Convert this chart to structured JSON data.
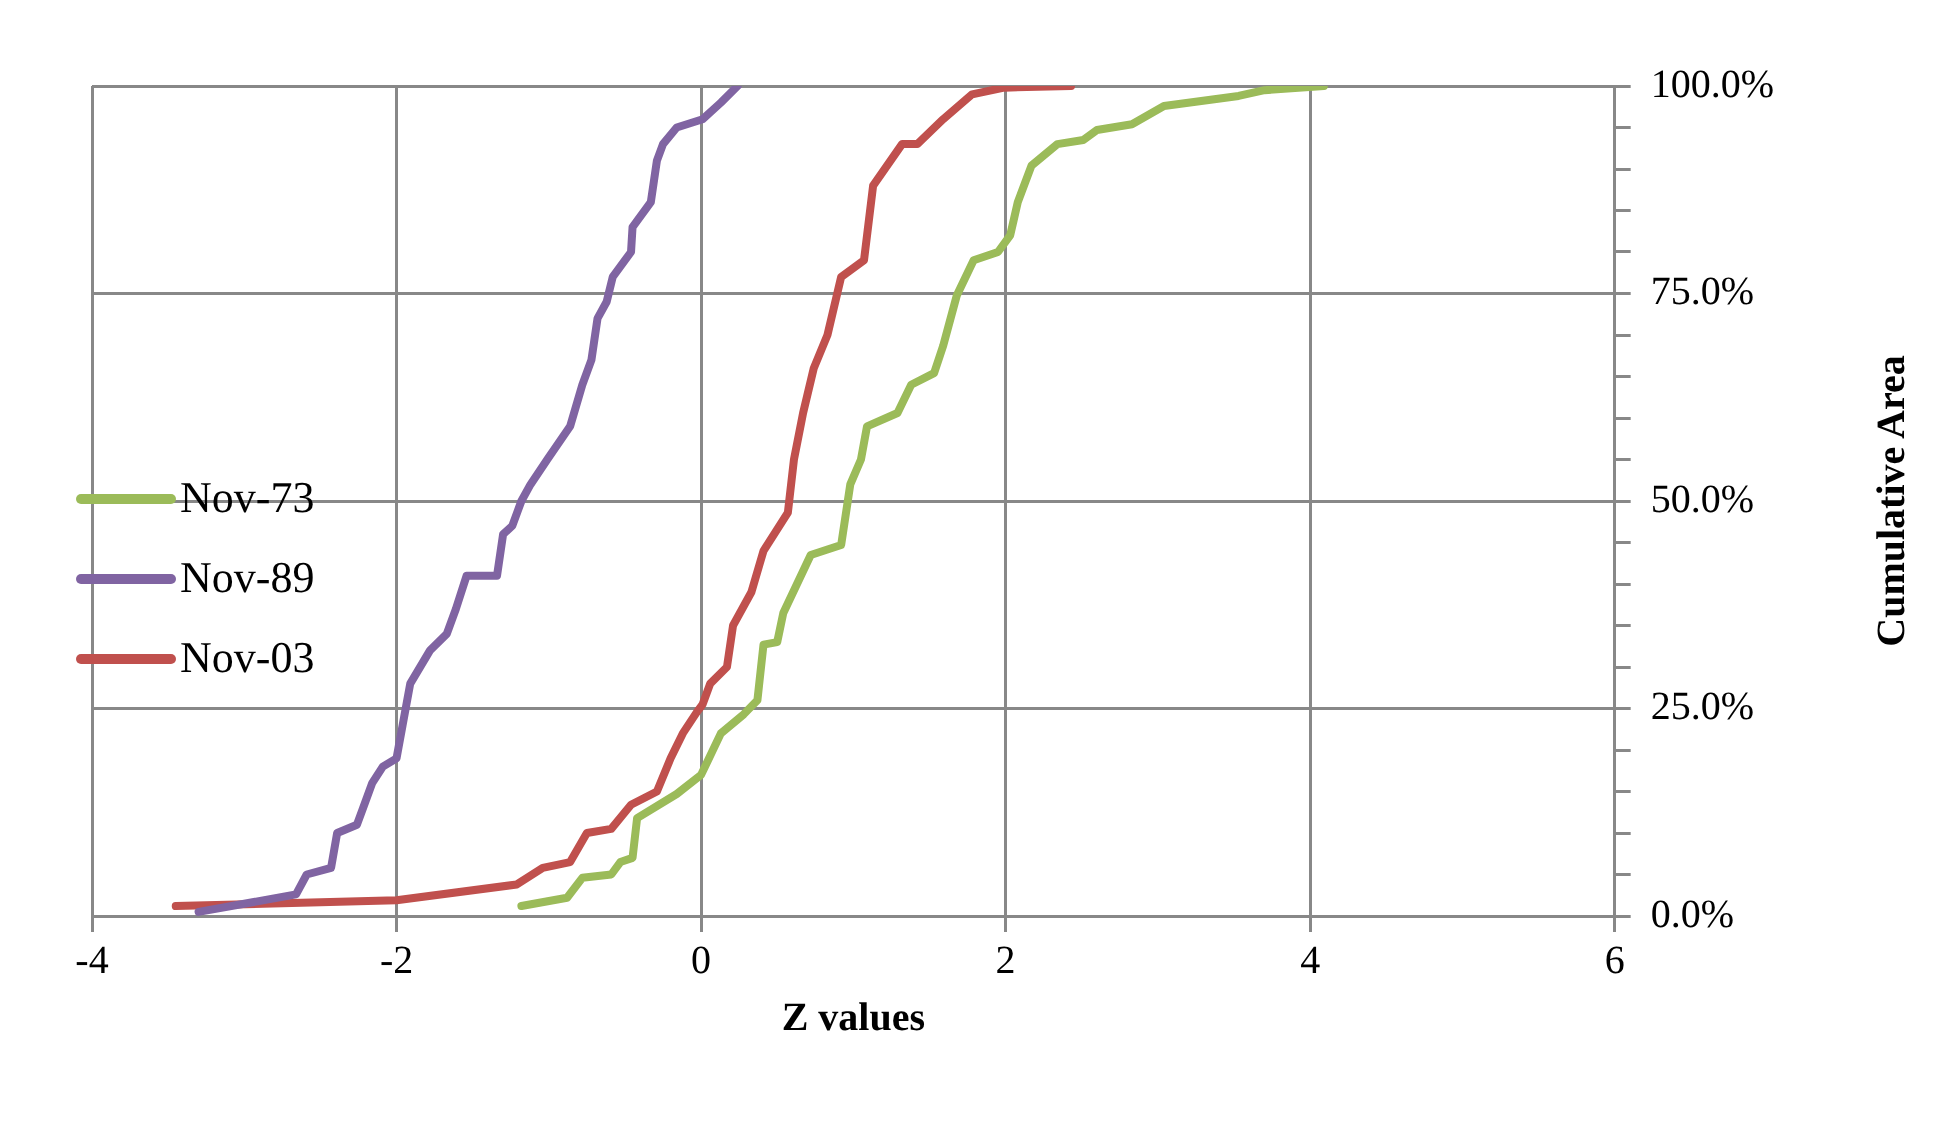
{
  "chart_data": {
    "type": "line",
    "xlabel": "Z values",
    "ylabel": "Cumulative Area",
    "xlim": [
      -4,
      6
    ],
    "xticks": [
      -4,
      -2,
      0,
      2,
      4,
      6
    ],
    "ylim": [
      0,
      100
    ],
    "yticks": [
      {
        "value": 0,
        "label": "0.0%"
      },
      {
        "value": 5,
        "label": null
      },
      {
        "value": 10,
        "label": null
      },
      {
        "value": 15,
        "label": null
      },
      {
        "value": 20,
        "label": null
      },
      {
        "value": 25,
        "label": "25.0%"
      },
      {
        "value": 30,
        "label": null
      },
      {
        "value": 35,
        "label": null
      },
      {
        "value": 40,
        "label": null
      },
      {
        "value": 45,
        "label": null
      },
      {
        "value": 50,
        "label": "50.0%"
      },
      {
        "value": 55,
        "label": null
      },
      {
        "value": 60,
        "label": null
      },
      {
        "value": 65,
        "label": null
      },
      {
        "value": 70,
        "label": null
      },
      {
        "value": 75,
        "label": "75.0%"
      },
      {
        "value": 80,
        "label": null
      },
      {
        "value": 85,
        "label": null
      },
      {
        "value": 90,
        "label": null
      },
      {
        "value": 95,
        "label": null
      },
      {
        "value": 100,
        "label": "100.0%"
      }
    ],
    "grid": true,
    "legend": "left",
    "marker": "none",
    "line_style": "solid",
    "series": [
      {
        "name": "Nov-73",
        "color": "#9bbb59",
        "x": [
          -1.18,
          -0.88,
          -0.78,
          -0.59,
          -0.53,
          -0.45,
          -0.42,
          -0.16,
          0,
          0.13,
          0.28,
          0.37,
          0.41,
          0.5,
          0.54,
          0.72,
          0.92,
          0.98,
          1.05,
          1.09,
          1.29,
          1.38,
          1.53,
          1.59,
          1.68,
          1.79,
          1.95,
          2.03,
          2.08,
          2.17,
          2.34,
          2.51,
          2.6,
          2.83,
          3.04,
          3.53,
          3.7,
          4.09
        ],
        "values": [
          1.2,
          2.2,
          4.6,
          5,
          6.5,
          7,
          11.8,
          14.7,
          17,
          22,
          24.3,
          26,
          32.7,
          33,
          36.5,
          43.5,
          44.7,
          52,
          55,
          59,
          60.6,
          64,
          65.4,
          68.7,
          74.8,
          79,
          80,
          82,
          86,
          90.4,
          93,
          93.5,
          94.7,
          95.4,
          97.6,
          98.8,
          99.5,
          100
        ]
      },
      {
        "name": "Nov-89",
        "color": "#8064a2",
        "x": [
          -3.3,
          -2.66,
          -2.59,
          -2.43,
          -2.39,
          -2.26,
          -2.22,
          -2.16,
          -2.09,
          -2,
          -1.96,
          -1.91,
          -1.78,
          -1.67,
          -1.61,
          -1.54,
          -1.34,
          -1.3,
          -1.24,
          -1.18,
          -1.12,
          -1.01,
          -0.86,
          -0.78,
          -0.72,
          -0.68,
          -0.62,
          -0.58,
          -0.46,
          -0.45,
          -0.33,
          -0.29,
          -0.25,
          -0.16,
          0.01,
          0.13,
          0.24
        ],
        "values": [
          0.5,
          2.6,
          5,
          5.8,
          10,
          11,
          13,
          16,
          18,
          19,
          23,
          28,
          32,
          34,
          37,
          41,
          41,
          46,
          47,
          50,
          52,
          55,
          59,
          64,
          67,
          72,
          74,
          77,
          80,
          83,
          86,
          91,
          93,
          95,
          96,
          98,
          100
        ]
      },
      {
        "name": "Nov-03",
        "color": "#c0504d",
        "x": [
          -3.45,
          -2,
          -1.21,
          -1.04,
          -0.86,
          -0.75,
          -0.59,
          -0.46,
          -0.29,
          -0.2,
          -0.12,
          -0.03,
          0.01,
          0.06,
          0.17,
          0.21,
          0.33,
          0.41,
          0.57,
          0.61,
          0.67,
          0.74,
          0.83,
          0.92,
          1.07,
          1.13,
          1.32,
          1.42,
          1.59,
          1.78,
          1.99,
          2.43
        ],
        "values": [
          1.2,
          1.9,
          3.8,
          5.8,
          6.5,
          10,
          10.5,
          13.4,
          15,
          19,
          22,
          24.5,
          25.5,
          28,
          30,
          35,
          39,
          44,
          48.6,
          55,
          60.6,
          66,
          70,
          77,
          79,
          88,
          93,
          93,
          96,
          99,
          99.8,
          100
        ]
      }
    ]
  }
}
